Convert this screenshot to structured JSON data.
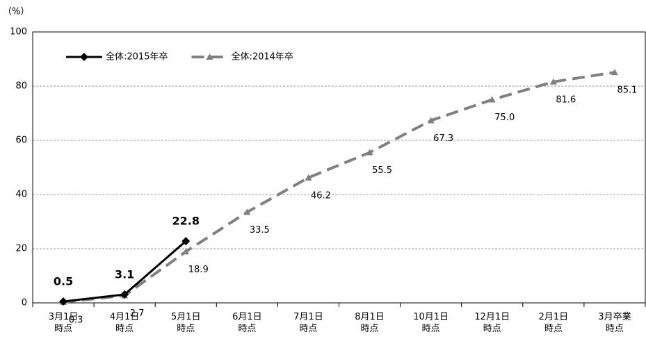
{
  "chart_data": {
    "type": "line",
    "y_unit_label": "（%）",
    "categories": [
      "3月1日\n時点",
      "4月1日\n時点",
      "5月1日\n時点",
      "6月1日\n時点",
      "7月1日\n時点",
      "8月1日\n時点",
      "10月1日\n時点",
      "12月1日\n時点",
      "2月1日\n時点",
      "3月卒業\n時点"
    ],
    "series": [
      {
        "name": "全体:2015年卒",
        "color": "#000000",
        "marker": "diamond",
        "dashed": false,
        "label_weight": "bold",
        "values": [
          0.5,
          3.1,
          22.8,
          null,
          null,
          null,
          null,
          null,
          null,
          null
        ],
        "value_labels": [
          "0.5",
          "3.1",
          "22.8",
          null,
          null,
          null,
          null,
          null,
          null,
          null
        ]
      },
      {
        "name": "全体:2014年卒",
        "color": "#808080",
        "marker": "triangle",
        "dashed": true,
        "label_weight": "normal",
        "values": [
          0.3,
          2.7,
          18.9,
          33.5,
          46.2,
          55.5,
          67.3,
          75.0,
          81.6,
          85.1
        ],
        "value_labels": [
          "0.3",
          "2.7",
          "18.9",
          "33.5",
          "46.2",
          "55.5",
          "67.3",
          "75.0",
          "81.6",
          "85.1"
        ]
      }
    ],
    "ylim": [
      0,
      100
    ],
    "yticks": [
      0,
      20,
      40,
      60,
      80,
      100
    ],
    "grid": true,
    "legend": "top-left"
  }
}
